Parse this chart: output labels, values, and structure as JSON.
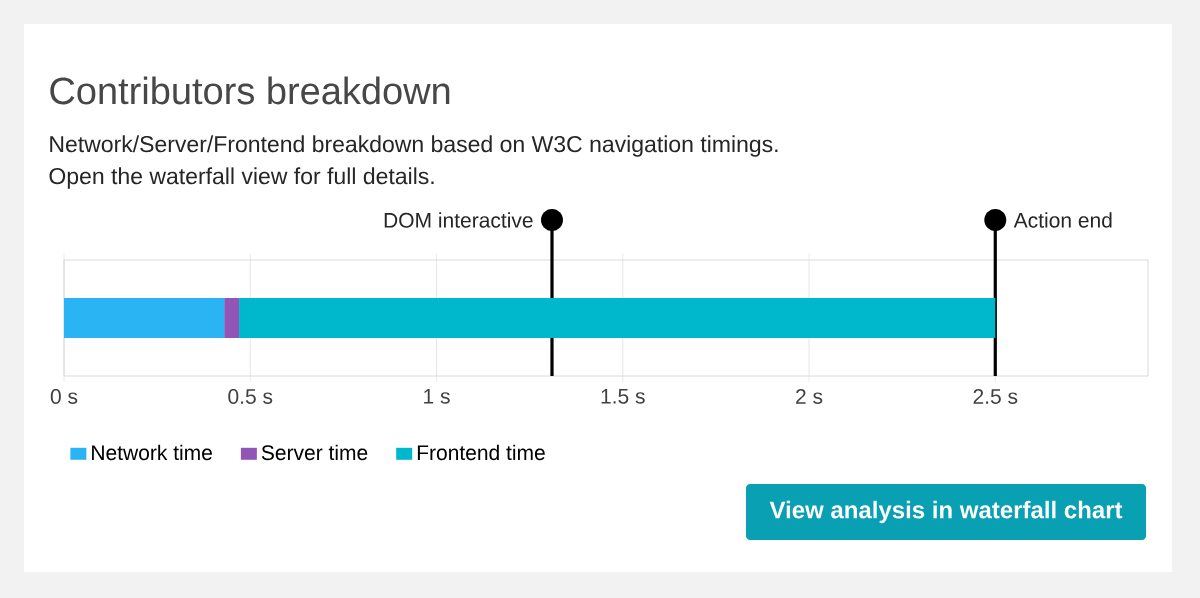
{
  "chart_data": {
    "type": "bar",
    "orientation": "horizontal",
    "stacked": true,
    "title": "Contributors breakdown",
    "subtitle": "Network/Server/Frontend breakdown based on W3C navigation timings.",
    "annotations": [
      "Open the waterfall view for full details.",
      "View analysis in waterfall chart"
    ],
    "categories": [
      null
    ],
    "series": [
      {
        "name": "Network time",
        "color": "#2ab4f4",
        "values": [
          0.43
        ]
      },
      {
        "name": "Server time",
        "color": "#9155b8",
        "values": [
          0.04
        ]
      },
      {
        "name": "Frontend time",
        "color": "#00b8cc",
        "values": [
          2.03
        ]
      }
    ],
    "xlim": [
      0,
      2.91
    ],
    "xticks": [
      {
        "value": 0,
        "label": "0 s"
      },
      {
        "value": 0.5,
        "label": "0.5 s"
      },
      {
        "value": 1,
        "label": "1 s"
      },
      {
        "value": 1.5,
        "label": "1.5 s"
      },
      {
        "value": 2,
        "label": "2 s"
      },
      {
        "value": 2.5,
        "label": "2.5 s"
      }
    ],
    "ref_lines": [
      {
        "axis": "x",
        "value": 1.31,
        "label": "DOM interactive",
        "color": "#000000"
      },
      {
        "axis": "x",
        "value": 2.5,
        "label": "Action end",
        "color": "#000000"
      }
    ],
    "grid": "x",
    "legend": "bottom left"
  }
}
